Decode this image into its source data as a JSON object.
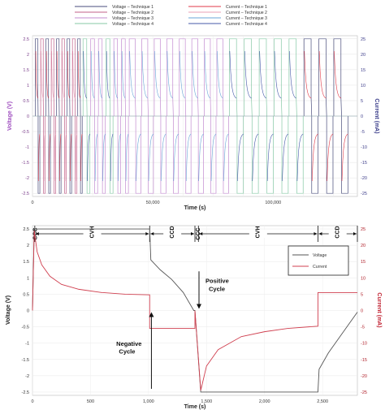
{
  "chart_data": [
    {
      "type": "line",
      "xlabel": "Time (s)",
      "ylabel": "Voltage (V)",
      "y2label": "Current (mA)",
      "x_ticks": [
        "0",
        "50,000",
        "100,000"
      ],
      "y_ticks": [
        "2.5",
        "2",
        "1.5",
        "1",
        "0.5",
        "0",
        "-0.5",
        "-1",
        "-1.5",
        "-2",
        "-2.5"
      ],
      "y2_ticks": [
        "25",
        "20",
        "15",
        "10",
        "5",
        "0",
        "-5",
        "-10",
        "-15",
        "-20",
        "-25"
      ],
      "ylim": [
        -2.6,
        2.6
      ],
      "y2lim": [
        -26,
        26
      ],
      "xlim": [
        0,
        135000
      ],
      "legend_position": "top",
      "grid": true,
      "series": [
        {
          "name": "Voltage – Technique 1",
          "color": "#4a4e7c"
        },
        {
          "name": "Voltage – Technique 2",
          "color": "#c0608a"
        },
        {
          "name": "Voltage – Technique 3",
          "color": "#c38bd0"
        },
        {
          "name": "Voltage – Technique 4",
          "color": "#86c9a6"
        },
        {
          "name": "Current – Technique 1",
          "color": "#e03a48"
        },
        {
          "name": "Current – Technique 2",
          "color": "#e8a0b4"
        },
        {
          "name": "Current – Technique 3",
          "color": "#6aa6d8"
        },
        {
          "name": "Current – Technique 4",
          "color": "#4458a8"
        }
      ]
    },
    {
      "type": "line",
      "xlabel": "Time (s)",
      "ylabel": "Voltage (V)",
      "y2label": "Current (mA)",
      "x_ticks": [
        "0",
        "500",
        "1,000",
        "1,500",
        "2,000",
        "2,500"
      ],
      "y_ticks": [
        "2.5",
        "2",
        "1.5",
        "1",
        "0.5",
        "0",
        "-0.5",
        "-1",
        "-1.5",
        "-2",
        "-2.5"
      ],
      "y2_ticks": [
        "25",
        "20",
        "15",
        "10",
        "5",
        "0",
        "-5",
        "-10",
        "-15",
        "-20",
        "-25"
      ],
      "xlim": [
        0,
        2800
      ],
      "ylim": [
        -2.6,
        2.6
      ],
      "y2lim": [
        -26,
        26
      ],
      "legend_position": "top-right",
      "grid": true,
      "phases": [
        "CCC",
        "CVH",
        "CCD",
        "CCC",
        "CVH",
        "CCD"
      ],
      "annotations": {
        "positive": "Positive\nCycle",
        "negative": "Negative\nCycle"
      },
      "series": [
        {
          "name": "Voltage",
          "color": "#555555",
          "points": [
            [
              0,
              0
            ],
            [
              15,
              2.5
            ],
            [
              1010,
              2.5
            ],
            [
              1020,
              1.55
            ],
            [
              1100,
              1.25
            ],
            [
              1200,
              0.95
            ],
            [
              1300,
              0.55
            ],
            [
              1390,
              0.0
            ],
            [
              1400,
              0.0
            ],
            [
              1450,
              -2.5
            ],
            [
              2460,
              -2.5
            ],
            [
              2470,
              -1.8
            ],
            [
              2550,
              -1.3
            ],
            [
              2650,
              -0.8
            ],
            [
              2800,
              -0.05
            ]
          ]
        },
        {
          "name": "Current",
          "color": "#d04050",
          "points": [
            [
              0,
              0
            ],
            [
              15,
              24.5
            ],
            [
              40,
              18
            ],
            [
              80,
              14
            ],
            [
              150,
              10.5
            ],
            [
              250,
              8
            ],
            [
              400,
              6.5
            ],
            [
              600,
              5.5
            ],
            [
              800,
              5
            ],
            [
              1010,
              4.8
            ],
            [
              1010,
              -5.5
            ],
            [
              1400,
              -5.5
            ],
            [
              1400,
              0
            ],
            [
              1450,
              -24.5
            ],
            [
              1500,
              -17
            ],
            [
              1600,
              -12
            ],
            [
              1800,
              -8
            ],
            [
              2000,
              -6.5
            ],
            [
              2200,
              -5.5
            ],
            [
              2460,
              -4.8
            ],
            [
              2460,
              5.5
            ],
            [
              2800,
              5.5
            ]
          ]
        }
      ]
    }
  ]
}
